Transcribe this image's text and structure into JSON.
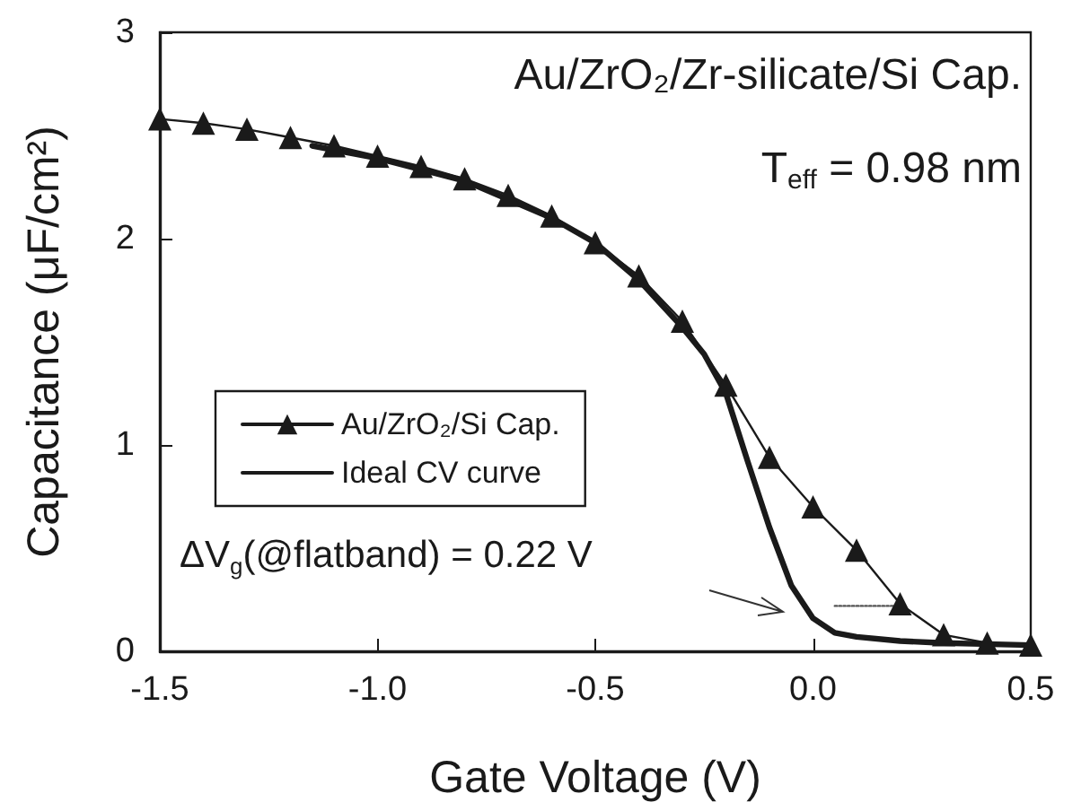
{
  "chart_data": {
    "type": "line",
    "xlabel": "Gate Voltage (V)",
    "ylabel": "Capacitance (μF/cm²)",
    "xlim": [
      -1.5,
      0.5
    ],
    "xticks": [
      {
        "value": -1.5,
        "label": "-1.5"
      },
      {
        "value": -1.0,
        "label": "-1.0"
      },
      {
        "value": -0.5,
        "label": "-0.5"
      },
      {
        "value": 0.0,
        "label": "0.0"
      },
      {
        "value": 0.5,
        "label": "0.5"
      }
    ],
    "ylim": [
      0,
      3
    ],
    "yticks": [
      0,
      1,
      2,
      3
    ],
    "grid": false,
    "legend": "center left",
    "series": [
      {
        "name": "Au/ZrO₂/Si Cap.",
        "color": "#1a1a1a",
        "marker": "triangle",
        "line_style": "solid",
        "x": [
          -1.5,
          -1.4,
          -1.3,
          -1.2,
          -1.1,
          -1.0,
          -0.9,
          -0.8,
          -0.7,
          -0.6,
          -0.5,
          -0.4,
          -0.3,
          -0.2,
          -0.1,
          0.0,
          0.1,
          0.2,
          0.3,
          0.4,
          0.5
        ],
        "values": [
          2.58,
          2.56,
          2.53,
          2.49,
          2.45,
          2.4,
          2.35,
          2.29,
          2.21,
          2.11,
          1.98,
          1.82,
          1.6,
          1.29,
          0.94,
          0.7,
          0.49,
          0.23,
          0.08,
          0.04,
          0.03
        ]
      },
      {
        "name": "Ideal CV curve",
        "color": "#1a1a1a",
        "marker": "none",
        "line_style": "solid",
        "x": [
          -1.15,
          -1.0,
          -0.8,
          -0.6,
          -0.5,
          -0.4,
          -0.3,
          -0.25,
          -0.2,
          -0.15,
          -0.1,
          -0.05,
          0.0,
          0.05,
          0.1,
          0.2,
          0.3,
          0.5
        ],
        "values": [
          2.45,
          2.39,
          2.28,
          2.1,
          1.98,
          1.8,
          1.57,
          1.44,
          1.25,
          0.92,
          0.6,
          0.32,
          0.16,
          0.09,
          0.07,
          0.05,
          0.04,
          0.03
        ]
      },
      {
        "color": "#555555",
        "marker": "none",
        "line_style": "dotted",
        "x": [
          0.05,
          0.19
        ],
        "values": [
          0.22,
          0.22
        ]
      }
    ],
    "annotations": [
      "Au/ZrO₂/Zr-silicate/Si Cap.",
      "T$_{eff}$ = 0.98 nm",
      "ΔV$_{g}$(@flatband) = 0.22 V"
    ]
  }
}
